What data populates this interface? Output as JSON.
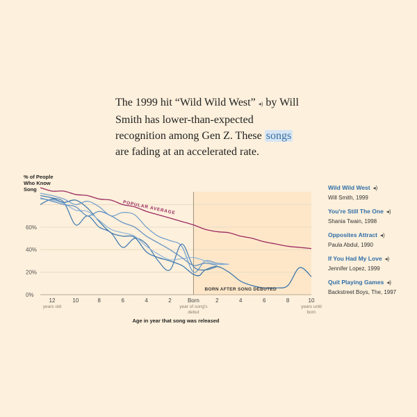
{
  "intro": {
    "part1": "The 1999 hit “Wild Wild West”",
    "speaker": "◂)",
    "part2": " by Will Smith has lower-than-expected recognition among Gen Z. These ",
    "highlight": "songs",
    "part3": " are fading at an accelerated rate."
  },
  "legend": {
    "speaker": "◂)",
    "items": [
      {
        "title": "Wild Wild West",
        "sub": "Will Smith, 1999"
      },
      {
        "title": "You're Still The One",
        "sub": "Shania Twain, 1998"
      },
      {
        "title": "Opposites Attract",
        "sub": "Paula Abdul, 1990"
      },
      {
        "title": "If You Had My Love",
        "sub": "Jennifer Lopez, 1999"
      },
      {
        "title": "Quit Playing Games",
        "sub": "Backstreet Boys, The, 1997"
      }
    ]
  },
  "chart_data": {
    "type": "line",
    "ylabel": [
      "% of People",
      "Who Know",
      "Song"
    ],
    "xlabel": "Age in year that song was released",
    "xlim": [
      -13,
      10
    ],
    "ylim": [
      0,
      100
    ],
    "grid": true,
    "x_ticks": [
      {
        "x": -12,
        "label": "12",
        "sub": [
          "years old"
        ]
      },
      {
        "x": -10,
        "label": "10",
        "sub": []
      },
      {
        "x": -8,
        "label": "8",
        "sub": []
      },
      {
        "x": -6,
        "label": "6",
        "sub": []
      },
      {
        "x": -4,
        "label": "4",
        "sub": []
      },
      {
        "x": -2,
        "label": "2",
        "sub": []
      },
      {
        "x": 0,
        "label": "Born",
        "sub": [
          "year of song's",
          "debut"
        ]
      },
      {
        "x": 2,
        "label": "2",
        "sub": []
      },
      {
        "x": 4,
        "label": "4",
        "sub": []
      },
      {
        "x": 6,
        "label": "6",
        "sub": []
      },
      {
        "x": 8,
        "label": "8",
        "sub": []
      },
      {
        "x": 10,
        "label": "10",
        "sub": [
          "years until",
          "born"
        ]
      }
    ],
    "y_ticks": [
      {
        "y": 0,
        "label": "0%"
      },
      {
        "y": 20,
        "label": "20%"
      },
      {
        "y": 40,
        "label": "40%"
      },
      {
        "y": 60,
        "label": "60%"
      }
    ],
    "annotations": {
      "popular_average": "POPULAR AVERAGE",
      "born_after": "BORN AFTER SONG DEBUTED"
    },
    "colors": {
      "average": "#9b2a62",
      "songs": "#4a7fb5",
      "highlight": "#2f6ea8",
      "shade": "#fde3c0",
      "grid": "#e8dcc6"
    },
    "series": [
      {
        "name": "Popular average",
        "x": [
          -13,
          -12,
          -11,
          -10,
          -9,
          -8,
          -7,
          -6,
          -5,
          -4,
          -3,
          -2,
          -1,
          0,
          1,
          2,
          3,
          4,
          5,
          6,
          7,
          8,
          9,
          10
        ],
        "y": [
          95,
          92,
          92,
          89,
          88,
          85,
          84,
          80,
          78,
          74,
          71,
          68,
          65,
          62,
          58,
          56,
          55,
          52,
          50,
          47,
          45,
          43,
          42,
          41
        ]
      },
      {
        "name": "Wild Wild West",
        "x": [
          -13,
          -12,
          -11,
          -10,
          -9,
          -8,
          -7,
          -6,
          -5,
          -4,
          -3,
          -2,
          -1,
          -0.5,
          0,
          0.5,
          1,
          2,
          3,
          4,
          5,
          6,
          7,
          8,
          9,
          10
        ],
        "y": [
          80,
          85,
          82,
          84,
          77,
          65,
          55,
          52,
          51,
          38,
          33,
          30,
          26,
          22,
          18,
          17,
          22,
          25,
          20,
          12,
          8,
          6,
          6,
          8,
          24,
          16
        ]
      },
      {
        "name": "You're Still The One",
        "x": [
          -13,
          -12,
          -11,
          -10,
          -9,
          -8,
          -7,
          -6,
          -5,
          -4,
          -3,
          -2,
          -1,
          0,
          1,
          2,
          3
        ],
        "y": [
          90,
          88,
          85,
          80,
          83,
          78,
          70,
          73,
          71,
          60,
          52,
          48,
          43,
          20,
          30,
          28,
          27
        ]
      },
      {
        "name": "Opposites Attract",
        "x": [
          -13,
          -12,
          -11,
          -10,
          -9,
          -8,
          -7,
          -6,
          -5,
          -4,
          -3,
          -2,
          -1,
          0,
          1,
          2
        ],
        "y": [
          88,
          86,
          82,
          62,
          70,
          60,
          55,
          42,
          50,
          45,
          30,
          22,
          45,
          25,
          22,
          25
        ]
      },
      {
        "name": "If You Had My Love",
        "x": [
          -13,
          -12,
          -11,
          -10,
          -9,
          -8,
          -7,
          -6,
          -5,
          -4,
          -3,
          -2,
          -1,
          0,
          1,
          2,
          3
        ],
        "y": [
          85,
          84,
          81,
          75,
          74,
          66,
          58,
          55,
          52,
          43,
          36,
          31,
          32,
          33,
          30,
          27,
          27
        ]
      },
      {
        "name": "Quit Playing Games",
        "x": [
          -13,
          -12,
          -11,
          -10,
          -9,
          -8,
          -7,
          -6,
          -5,
          -4,
          -3,
          -2,
          -1,
          0,
          1,
          2
        ],
        "y": [
          86,
          83,
          80,
          78,
          70,
          74,
          70,
          64,
          60,
          52,
          46,
          40,
          33,
          26,
          28,
          26
        ]
      }
    ]
  }
}
